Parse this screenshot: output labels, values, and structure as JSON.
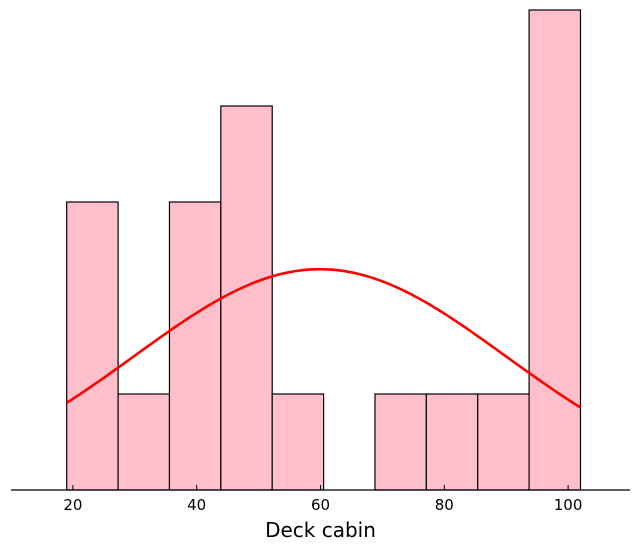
{
  "chart_data": {
    "type": "bar",
    "chart_subtype": "histogram with density curve",
    "xlabel": "Deck cabin",
    "ylabel": "",
    "title": "",
    "xlim": [
      10,
      110
    ],
    "ylim": [
      0,
      5
    ],
    "y_axis_visible": false,
    "grid": false,
    "legend": "none",
    "x_ticks": [
      20,
      40,
      60,
      80,
      100
    ],
    "bins": [
      {
        "x0": 19.0,
        "x1": 27.3,
        "count": 3
      },
      {
        "x0": 27.3,
        "x1": 35.6,
        "count": 1
      },
      {
        "x0": 35.6,
        "x1": 43.9,
        "count": 3
      },
      {
        "x0": 43.9,
        "x1": 52.2,
        "count": 4
      },
      {
        "x0": 52.2,
        "x1": 60.5,
        "count": 1
      },
      {
        "x0": 60.5,
        "x1": 68.8,
        "count": 0
      },
      {
        "x0": 68.8,
        "x1": 77.1,
        "count": 1
      },
      {
        "x0": 77.1,
        "x1": 85.4,
        "count": 1
      },
      {
        "x0": 85.4,
        "x1": 93.7,
        "count": 1
      },
      {
        "x0": 93.7,
        "x1": 102.0,
        "count": 5
      }
    ],
    "density_curve": {
      "color": "#ff0000",
      "x_range": [
        19,
        102
      ],
      "mean": 59.9,
      "std": 30.0,
      "peak_height": 2.3
    },
    "bar_color": "#ffc0cb",
    "edge_color": "#000000"
  }
}
